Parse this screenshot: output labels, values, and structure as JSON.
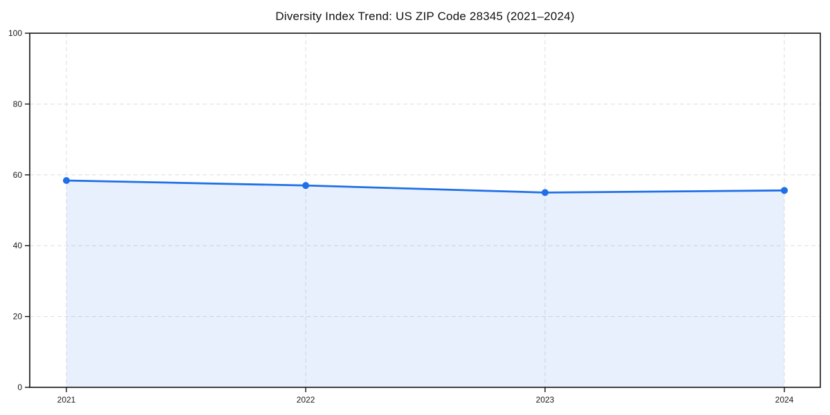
{
  "title": "Diversity Index Trend: US ZIP Code 28345 (2021–2024)",
  "chart_data": {
    "type": "area",
    "title": "Diversity Index Trend: US ZIP Code 28345 (2021–2024)",
    "categories": [
      "2021",
      "2022",
      "2023",
      "2024"
    ],
    "series": [
      {
        "name": "Diversity Index",
        "values": [
          58.4,
          57.0,
          55.0,
          55.6
        ]
      }
    ],
    "xlabel": "",
    "ylabel": "",
    "ylim": [
      0,
      100
    ],
    "yticks": [
      0,
      20,
      40,
      60,
      80,
      100
    ],
    "ytick_labels": [
      "0",
      "20",
      "40",
      "60",
      "80",
      "100"
    ],
    "grid": true,
    "grid_style": "dashed",
    "legend_position": "none",
    "colors": {
      "line": "#1f6fe8",
      "marker": "#1f6fe8",
      "fill": "rgba(31,111,232,0.10)",
      "grid": "#dedede",
      "spine": "#111111",
      "tick": "#111111",
      "text": "#1a1a1a",
      "background": "#ffffff"
    }
  }
}
